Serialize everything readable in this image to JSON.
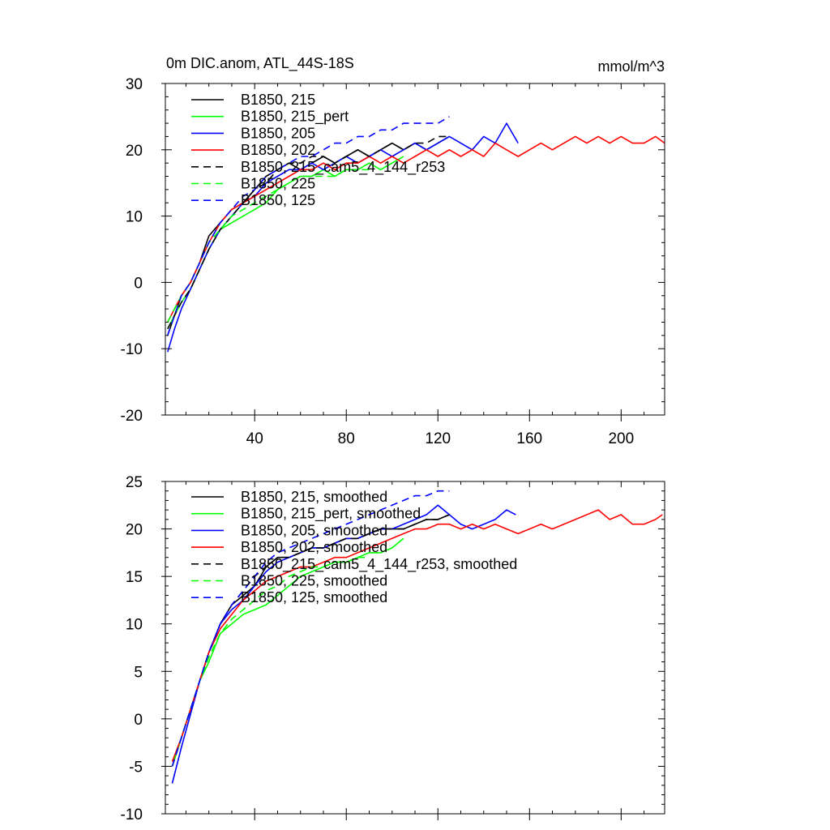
{
  "chart_data": [
    {
      "type": "line",
      "title": "0m DIC.anom, ATL_44S-18S",
      "units": "mmol/m^3",
      "xlim": [
        1,
        219
      ],
      "ylim": [
        -20,
        30
      ],
      "xticks": [
        40,
        80,
        120,
        160,
        200
      ],
      "yticks": [
        -20,
        -10,
        0,
        10,
        20,
        30
      ],
      "legend_position": "top-left",
      "series": [
        {
          "name": "B1850, 215",
          "color": "#000000",
          "dash": "solid",
          "x": [
            2,
            5,
            8,
            12,
            16,
            20,
            25,
            30,
            35,
            40,
            45,
            50,
            55,
            60,
            65,
            70,
            75,
            80,
            85,
            90,
            95,
            100,
            105,
            110,
            115,
            120,
            125
          ],
          "y": [
            -8,
            -5,
            -2,
            0,
            3,
            7,
            9,
            11,
            12,
            14,
            16,
            17,
            18,
            17,
            18,
            19,
            18,
            19,
            20,
            19,
            20,
            21,
            20,
            21,
            20,
            21,
            22
          ]
        },
        {
          "name": "B1850, 215_pert",
          "color": "#00ff00",
          "dash": "solid",
          "x": [
            2,
            5,
            8,
            12,
            16,
            20,
            25,
            30,
            35,
            40,
            45,
            50,
            55,
            60,
            65,
            70,
            75,
            80,
            85,
            90,
            95,
            100,
            105
          ],
          "y": [
            -7,
            -5,
            -3,
            -1,
            2,
            5,
            8,
            9,
            10,
            11,
            12,
            14,
            15,
            16,
            16,
            17,
            16,
            17,
            17,
            18,
            17,
            18,
            19
          ]
        },
        {
          "name": "B1850, 205",
          "color": "#0000ff",
          "dash": "solid",
          "x": [
            2,
            5,
            8,
            12,
            16,
            20,
            25,
            30,
            35,
            40,
            45,
            50,
            55,
            60,
            65,
            70,
            75,
            80,
            85,
            90,
            95,
            100,
            105,
            110,
            115,
            120,
            125,
            130,
            135,
            140,
            145,
            150,
            155
          ],
          "y": [
            -10.5,
            -7,
            -4,
            -1,
            2,
            5,
            8,
            10,
            12,
            13,
            15,
            16,
            17,
            17,
            18,
            17,
            18,
            19,
            18,
            19,
            20,
            19,
            20,
            21,
            20,
            21,
            22,
            21,
            20,
            22,
            21,
            24,
            21
          ]
        },
        {
          "name": "B1850, 202",
          "color": "#ff0000",
          "dash": "solid",
          "x": [
            2,
            5,
            8,
            12,
            16,
            20,
            25,
            30,
            35,
            40,
            45,
            50,
            55,
            60,
            65,
            70,
            75,
            80,
            85,
            90,
            95,
            100,
            105,
            110,
            115,
            120,
            125,
            130,
            135,
            140,
            145,
            150,
            155,
            160,
            165,
            170,
            175,
            180,
            185,
            190,
            195,
            200,
            205,
            210,
            215,
            219
          ],
          "y": [
            -6,
            -4,
            -2,
            0,
            3,
            6,
            9,
            11,
            12,
            13,
            14,
            15,
            16,
            17,
            17,
            18,
            17,
            18,
            18,
            19,
            18,
            19,
            18,
            19,
            20,
            19,
            20,
            19,
            20,
            19,
            21,
            20,
            19,
            20,
            21,
            20,
            21,
            22,
            21,
            22,
            21,
            22,
            21,
            21,
            22,
            21
          ]
        },
        {
          "name": "B1850, 215_cam5_4_144_r253",
          "color": "#000000",
          "dash": "dashed",
          "x": [
            2,
            5,
            8,
            12,
            16,
            20,
            25,
            30,
            35,
            40,
            45,
            50,
            55,
            60,
            65,
            70,
            75,
            80,
            85,
            90,
            95,
            100,
            105,
            110,
            115,
            120,
            125
          ],
          "y": [
            -7,
            -5,
            -3,
            -1,
            2,
            5,
            8,
            10,
            12,
            14,
            15,
            17,
            18,
            18,
            19,
            19,
            18,
            19,
            20,
            19,
            20,
            21,
            20,
            21,
            21,
            22,
            22
          ]
        },
        {
          "name": "B1850, 225",
          "color": "#00ff00",
          "dash": "dashed",
          "x": [
            2,
            5,
            8,
            12,
            16,
            20,
            25,
            30,
            35,
            40,
            45,
            50,
            55,
            60,
            65,
            70,
            75,
            80,
            85,
            90
          ],
          "y": [
            -6,
            -4,
            -2,
            0,
            3,
            6,
            8,
            10,
            11,
            12,
            13,
            14,
            15,
            16,
            16,
            16,
            16,
            17,
            17,
            17
          ]
        },
        {
          "name": "B1850, 125",
          "color": "#0000ff",
          "dash": "dashed",
          "x": [
            2,
            5,
            8,
            12,
            16,
            20,
            25,
            30,
            35,
            40,
            45,
            50,
            55,
            60,
            65,
            70,
            75,
            80,
            85,
            90,
            95,
            100,
            105,
            110,
            115,
            120,
            125
          ],
          "y": [
            -8,
            -5,
            -2,
            0,
            3,
            6,
            9,
            11,
            13,
            14,
            16,
            17,
            18,
            19,
            19,
            20,
            21,
            21,
            22,
            22,
            23,
            23,
            24,
            24,
            24,
            24,
            25
          ]
        }
      ]
    },
    {
      "type": "line",
      "title": "",
      "xlim": [
        1,
        219
      ],
      "ylim": [
        -10,
        25
      ],
      "xticks": [
        40,
        80,
        120,
        160,
        200
      ],
      "yticks": [
        -10,
        -5,
        0,
        5,
        10,
        15,
        20,
        25
      ],
      "legend_position": "top-left",
      "series": [
        {
          "name": "B1850, 215, smoothed",
          "color": "#000000",
          "dash": "solid",
          "x": [
            4,
            8,
            12,
            16,
            20,
            25,
            30,
            35,
            40,
            45,
            50,
            55,
            60,
            65,
            70,
            75,
            80,
            85,
            90,
            95,
            100,
            105,
            110,
            115,
            120,
            125
          ],
          "y": [
            -5,
            -2,
            1,
            4,
            7,
            10,
            12,
            13,
            14,
            16,
            17,
            17,
            17.5,
            18,
            18,
            18.5,
            19,
            19,
            19.5,
            20,
            20,
            20,
            20.5,
            21,
            21,
            21.5
          ]
        },
        {
          "name": "B1850, 215_pert, smoothed",
          "color": "#00ff00",
          "dash": "solid",
          "x": [
            4,
            8,
            12,
            16,
            20,
            25,
            30,
            35,
            40,
            45,
            50,
            55,
            60,
            65,
            70,
            75,
            80,
            85,
            90,
            95,
            100,
            105
          ],
          "y": [
            -5,
            -2,
            1,
            4,
            6,
            9,
            10,
            11,
            11.5,
            12,
            13,
            14,
            15,
            15.5,
            16,
            16.5,
            16.5,
            17,
            17.5,
            17.5,
            18,
            19
          ]
        },
        {
          "name": "B1850, 205, smoothed",
          "color": "#0000ff",
          "dash": "solid",
          "x": [
            4,
            8,
            12,
            16,
            20,
            25,
            30,
            35,
            40,
            45,
            50,
            55,
            60,
            65,
            70,
            75,
            80,
            85,
            90,
            95,
            100,
            105,
            110,
            115,
            120,
            125,
            130,
            135,
            140,
            145,
            150,
            154
          ],
          "y": [
            -6.8,
            -3,
            0.5,
            4,
            7,
            10,
            11.5,
            12.5,
            14,
            15.5,
            16.5,
            17,
            17.5,
            18,
            18,
            18.5,
            19,
            19,
            19.5,
            20,
            20,
            20.5,
            21,
            21.5,
            22.5,
            21.5,
            20.5,
            20,
            20.5,
            21,
            22,
            21.5
          ]
        },
        {
          "name": "B1850, 202, smoothed",
          "color": "#ff0000",
          "dash": "solid",
          "x": [
            4,
            8,
            12,
            16,
            20,
            25,
            30,
            35,
            40,
            45,
            50,
            55,
            60,
            65,
            70,
            75,
            80,
            85,
            90,
            95,
            100,
            105,
            110,
            115,
            120,
            125,
            130,
            135,
            140,
            145,
            150,
            155,
            160,
            165,
            170,
            175,
            180,
            185,
            190,
            195,
            200,
            205,
            210,
            215,
            218
          ],
          "y": [
            -4.5,
            -2,
            1,
            4,
            7,
            9.5,
            11,
            12.5,
            13.5,
            14.5,
            15,
            15.5,
            16,
            16,
            16.5,
            17,
            17,
            17.5,
            18,
            18.5,
            19,
            19.5,
            20,
            20,
            20.5,
            20.5,
            20,
            20.5,
            20,
            20.5,
            20,
            19.5,
            20,
            20.5,
            20,
            20.5,
            21,
            21.5,
            22,
            21,
            21.5,
            20.5,
            20.5,
            21,
            21.5
          ]
        },
        {
          "name": "B1850_215_cam5_4_144_r253, smoothed",
          "color": "#000000",
          "dash": "dashed",
          "x": [
            4,
            8,
            12,
            16,
            20,
            25,
            30,
            35,
            40,
            45,
            50,
            55,
            60,
            65,
            70,
            75,
            80,
            85,
            90,
            95,
            100,
            105,
            110,
            115,
            120,
            125
          ],
          "y": [
            -5,
            -2,
            1,
            4,
            7,
            10,
            12,
            13.5,
            15,
            16,
            17,
            17,
            17.5,
            18,
            18,
            18.5,
            19,
            19,
            19.5,
            20,
            20,
            20,
            20.5,
            21,
            21,
            21.5
          ]
        },
        {
          "name": "B1850, 225, smoothed",
          "color": "#00ff00",
          "dash": "dashed",
          "x": [
            4,
            8,
            12,
            16,
            20,
            25,
            30,
            35,
            40,
            45,
            50,
            55,
            60,
            65,
            70,
            75,
            80,
            85,
            90
          ],
          "y": [
            -5,
            -2,
            1,
            4,
            6.5,
            9,
            10.5,
            11.5,
            12.5,
            13.5,
            14,
            15,
            15.5,
            16,
            16,
            16.5,
            16.5,
            17,
            17
          ]
        },
        {
          "name": "B1850, 125, smoothed",
          "color": "#0000ff",
          "dash": "dashed",
          "x": [
            4,
            8,
            12,
            16,
            20,
            25,
            30,
            35,
            40,
            45,
            50,
            55,
            60,
            65,
            70,
            75,
            80,
            85,
            90,
            95,
            100,
            105,
            110,
            115,
            120,
            125
          ],
          "y": [
            -5,
            -2,
            1,
            4,
            7,
            10,
            12,
            13.5,
            15,
            16.5,
            17.5,
            18,
            18.5,
            19,
            19.5,
            20,
            20.5,
            21,
            21.5,
            22,
            22.5,
            23,
            23.5,
            23.5,
            24,
            24
          ]
        }
      ]
    }
  ]
}
